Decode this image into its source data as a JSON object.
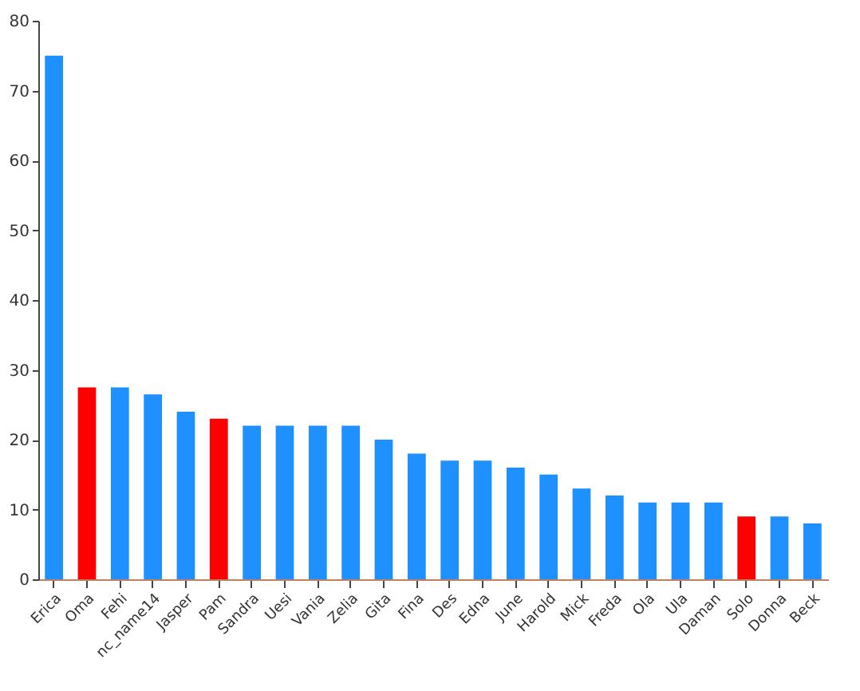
{
  "chart_data": {
    "type": "bar",
    "categories": [
      "Erica",
      "Oma",
      "Fehi",
      "nc_name14",
      "Jasper",
      "Pam",
      "Sandra",
      "Uesi",
      "Vania",
      "Zelia",
      "Gita",
      "Fina",
      "Des",
      "Edna",
      "June",
      "Harold",
      "Mick",
      "Freda",
      "Ola",
      "Ula",
      "Daman",
      "Solo",
      "Donna",
      "Beck"
    ],
    "values": [
      75,
      27.5,
      27.5,
      26.5,
      24,
      23,
      22,
      22,
      22,
      22,
      20,
      18,
      17,
      17,
      16,
      15,
      13,
      12,
      11,
      11,
      11,
      9,
      9,
      8
    ],
    "colors": [
      "#1e90ff",
      "#ff0000",
      "#1e90ff",
      "#1e90ff",
      "#1e90ff",
      "#ff0000",
      "#1e90ff",
      "#1e90ff",
      "#1e90ff",
      "#1e90ff",
      "#1e90ff",
      "#1e90ff",
      "#1e90ff",
      "#1e90ff",
      "#1e90ff",
      "#1e90ff",
      "#1e90ff",
      "#1e90ff",
      "#1e90ff",
      "#1e90ff",
      "#1e90ff",
      "#ff0000",
      "#1e90ff",
      "#1e90ff"
    ],
    "ylim": [
      0,
      80
    ],
    "yticks": [
      0,
      10,
      20,
      30,
      40,
      50,
      60,
      70,
      80
    ],
    "grid": false
  }
}
